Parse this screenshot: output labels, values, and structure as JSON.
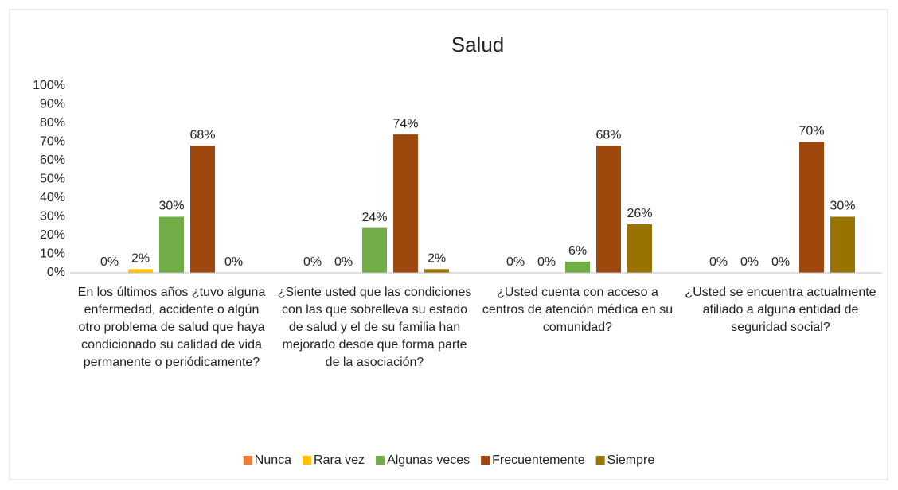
{
  "chart_data": {
    "type": "bar",
    "title": "Salud",
    "categories": [
      "En los últimos años ¿tuvo alguna enfermedad, accidente o algún otro problema de salud que haya condicionado su calidad de vida permanente o periódicamente?",
      "¿Siente usted que las condiciones con las  que sobrelleva su estado de salud y el de su familia han mejorado desde que forma parte de la asociación?",
      "¿Usted cuenta con acceso a centros de atención médica en su comunidad?",
      "¿Usted se encuentra actualmente afiliado a alguna entidad de seguridad social?"
    ],
    "series": [
      {
        "name": "Nunca",
        "color": "#ED7D31",
        "values": [
          0,
          0,
          0,
          0
        ],
        "value_labels": [
          "0%",
          "0%",
          "0%",
          "0%"
        ]
      },
      {
        "name": "Rara vez",
        "color": "#FFC000",
        "values": [
          2,
          0,
          0,
          0
        ],
        "value_labels": [
          "2%",
          "0%",
          "0%",
          "0%"
        ]
      },
      {
        "name": "Algunas veces",
        "color": "#70AD47",
        "values": [
          30,
          24,
          6,
          0
        ],
        "value_labels": [
          "30%",
          "24%",
          "6%",
          "0%"
        ]
      },
      {
        "name": "Frecuentemente",
        "color": "#9E480E",
        "values": [
          68,
          74,
          68,
          70
        ],
        "value_labels": [
          "68%",
          "74%",
          "68%",
          "70%"
        ]
      },
      {
        "name": "Siempre",
        "color": "#997300",
        "values": [
          0,
          2,
          26,
          30
        ],
        "value_labels": [
          "0%",
          "2%",
          "26%",
          "30%"
        ]
      }
    ],
    "ylim": [
      0,
      100
    ],
    "yticks": [
      {
        "value": 0,
        "label": "0%"
      },
      {
        "value": 10,
        "label": "10%"
      },
      {
        "value": 20,
        "label": "20%"
      },
      {
        "value": 30,
        "label": "30%"
      },
      {
        "value": 40,
        "label": "40%"
      },
      {
        "value": 50,
        "label": "50%"
      },
      {
        "value": 60,
        "label": "60%"
      },
      {
        "value": 70,
        "label": "70%"
      },
      {
        "value": 80,
        "label": "80%"
      },
      {
        "value": 90,
        "label": "90%"
      },
      {
        "value": 100,
        "label": "100%"
      }
    ],
    "grid": false,
    "legend": "bottom"
  }
}
